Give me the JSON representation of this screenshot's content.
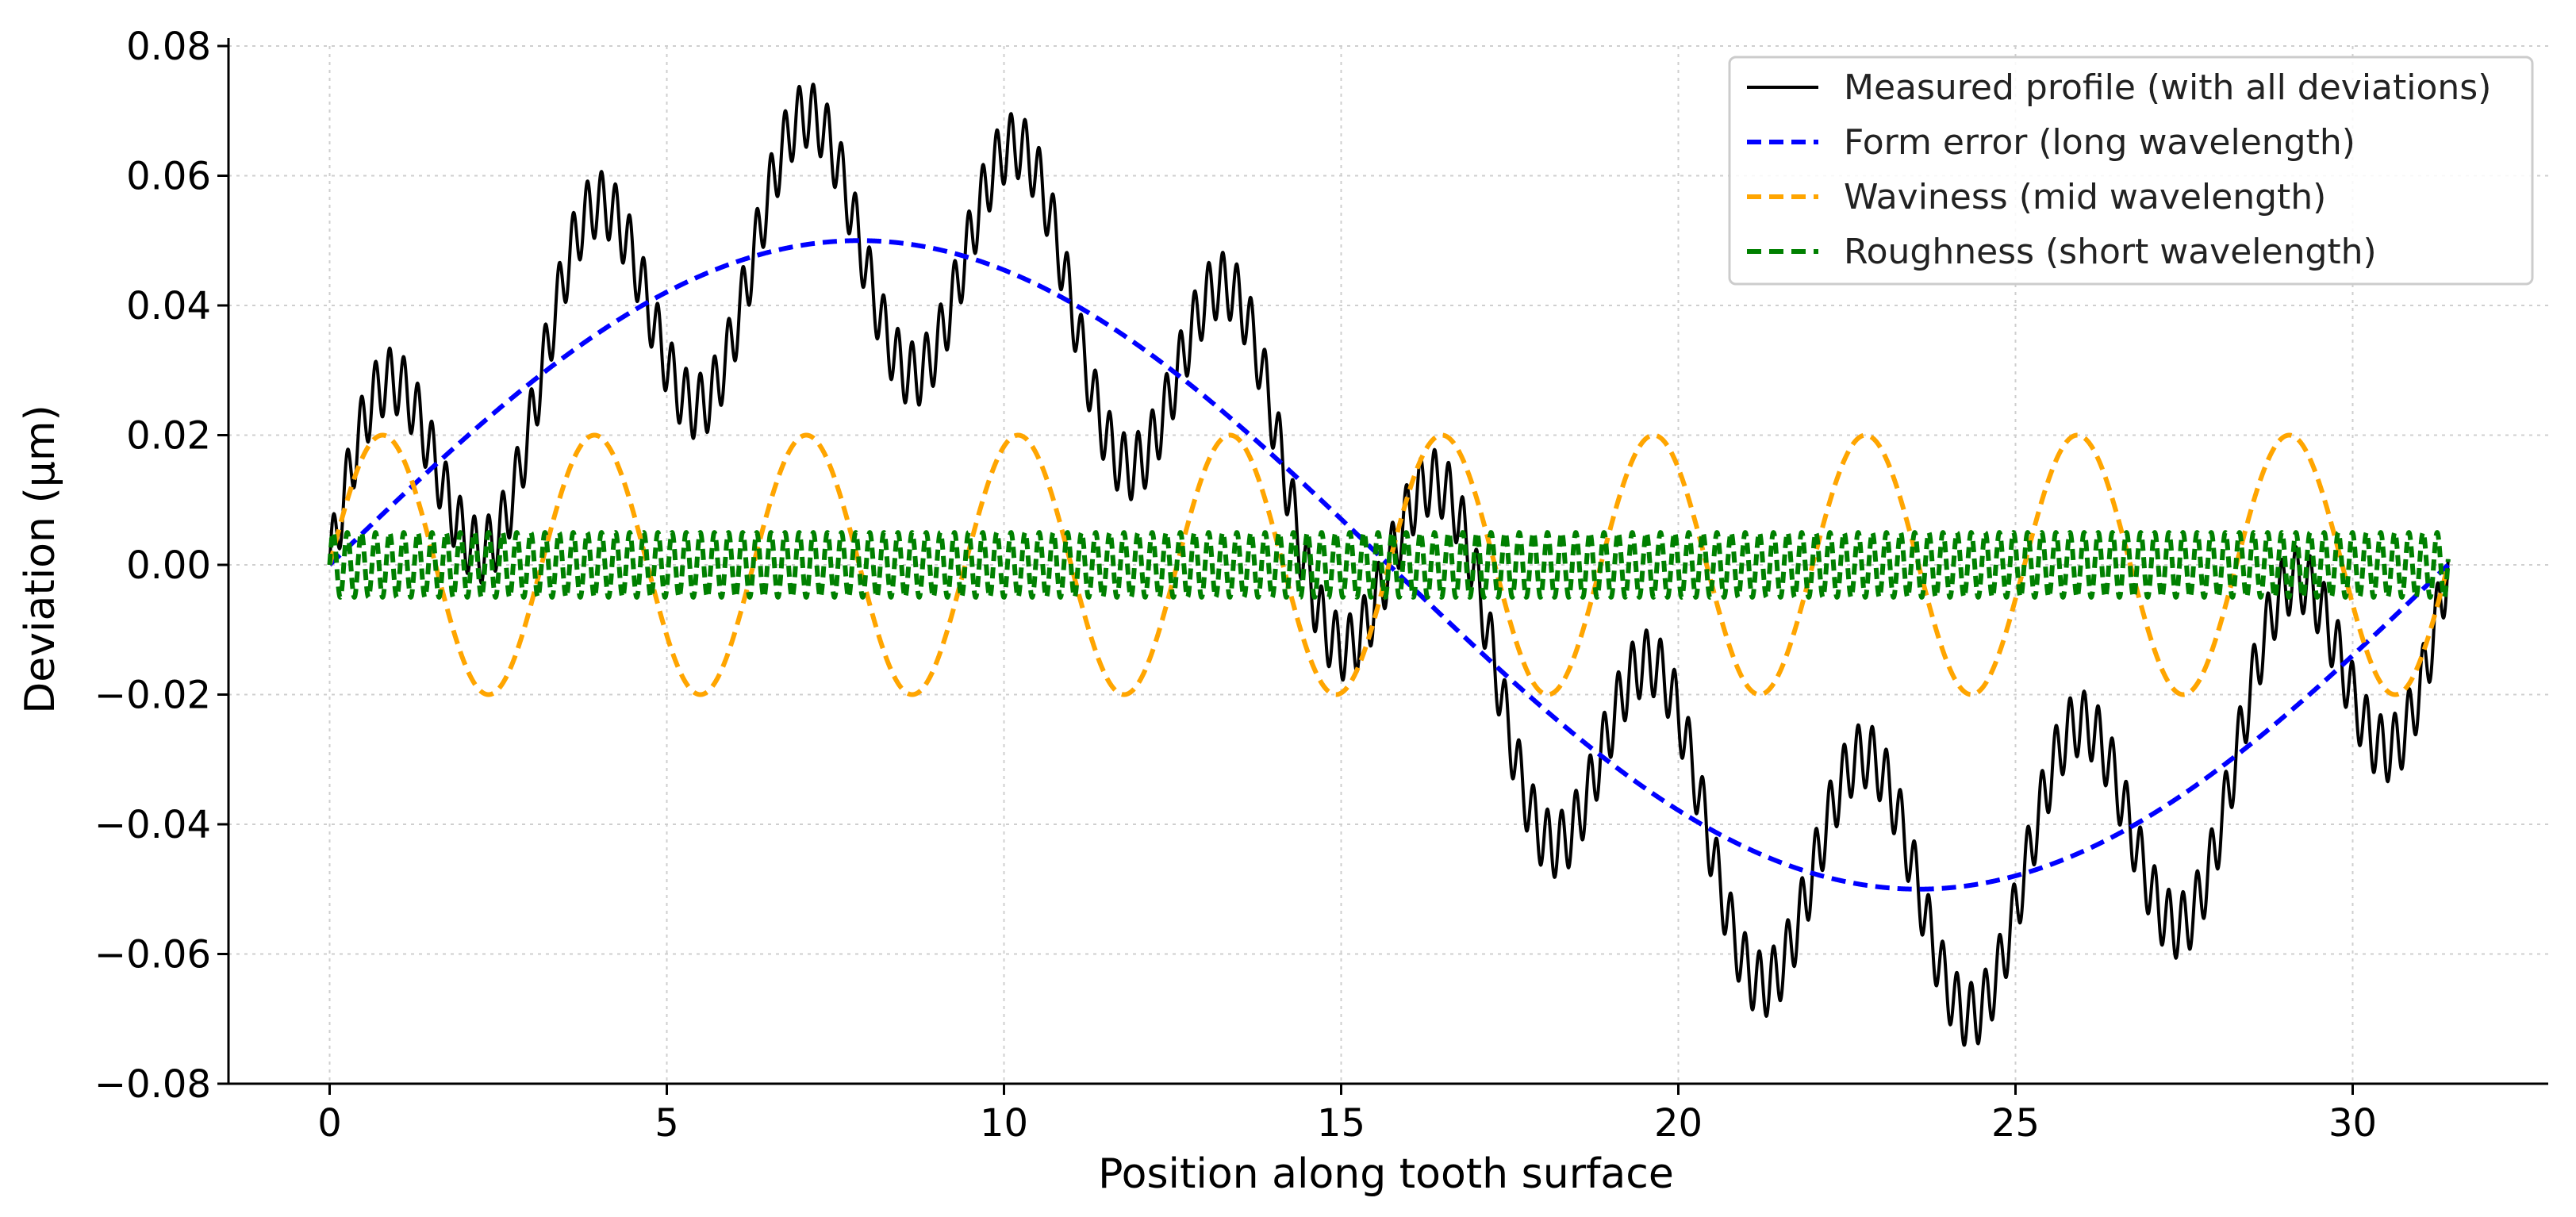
{
  "chart_data": {
    "type": "line",
    "title": "",
    "xlabel": "Position along tooth surface",
    "ylabel": "Deviation (µm)",
    "xlim": [
      -1.5,
      32.9
    ],
    "ylim": [
      -0.08,
      0.08
    ],
    "grid": true,
    "legend_position": "top-right",
    "x_range": [
      0,
      31.4159
    ],
    "x_ticks": [
      0,
      5,
      10,
      15,
      20,
      25,
      30
    ],
    "x_tick_labels": [
      "0",
      "5",
      "10",
      "15",
      "20",
      "25",
      "30"
    ],
    "y_ticks": [
      0.08,
      0.06,
      0.04,
      0.02,
      0.0,
      -0.02,
      -0.04,
      -0.06,
      -0.08
    ],
    "y_tick_labels": [
      "0.08",
      "0.06",
      "0.04",
      "0.02",
      "0.00",
      "−0.02",
      "−0.04",
      "−0.06",
      "−0.08"
    ],
    "series": [
      {
        "name": "Measured profile (with all deviations)",
        "color": "#000000",
        "style": "solid",
        "formula": "sum of form error, waviness and roughness components"
      },
      {
        "name": "Form error (long wavelength)",
        "color": "#0000ff",
        "style": "dashed",
        "amplitude": 0.05,
        "period": 31.4159
      },
      {
        "name": "Waviness (mid wavelength)",
        "color": "#ffa500",
        "style": "dashed",
        "amplitude": 0.02,
        "period": 3.1416
      },
      {
        "name": "Roughness (short wavelength)",
        "color": "#008000",
        "style": "dashed",
        "amplitude": 0.005,
        "period": 0.2094
      }
    ]
  }
}
